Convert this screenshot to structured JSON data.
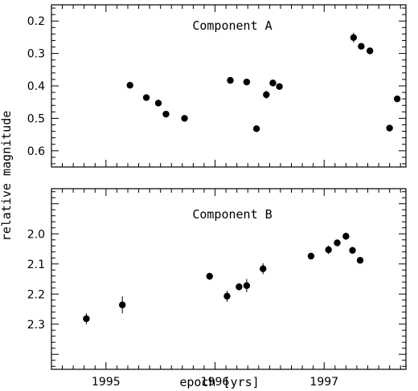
{
  "chart_data": {
    "type": "scatter",
    "xlabel": "epoch [yrs]",
    "ylabel": "relative magnitude",
    "xlim": [
      1994.5,
      1997.75
    ],
    "x_ticks": [
      1995,
      1996,
      1997
    ],
    "x_tick_labels": [
      "1995",
      "1996",
      "1997"
    ],
    "panels": [
      {
        "title": "Component A",
        "ylim": [
          0.15,
          0.65
        ],
        "y_inverted": true,
        "y_ticks": [
          0.2,
          0.3,
          0.4,
          0.5,
          0.6
        ],
        "y_tick_labels": [
          "0.2",
          "0.3",
          "0.4",
          "0.5",
          "0.6"
        ],
        "points": [
          {
            "x": 1995.22,
            "y": 0.398,
            "err": 0.008
          },
          {
            "x": 1995.37,
            "y": 0.436,
            "err": 0.008
          },
          {
            "x": 1995.48,
            "y": 0.453,
            "err": 0.008
          },
          {
            "x": 1995.55,
            "y": 0.487,
            "err": 0.008
          },
          {
            "x": 1995.72,
            "y": 0.5,
            "err": 0.008
          },
          {
            "x": 1996.14,
            "y": 0.383,
            "err": 0.008
          },
          {
            "x": 1996.29,
            "y": 0.388,
            "err": 0.008
          },
          {
            "x": 1996.38,
            "y": 0.532,
            "err": 0.008
          },
          {
            "x": 1996.47,
            "y": 0.427,
            "err": 0.012
          },
          {
            "x": 1996.53,
            "y": 0.391,
            "err": 0.008
          },
          {
            "x": 1996.59,
            "y": 0.402,
            "err": 0.008
          },
          {
            "x": 1997.27,
            "y": 0.251,
            "err": 0.015
          },
          {
            "x": 1997.34,
            "y": 0.278,
            "err": 0.008
          },
          {
            "x": 1997.42,
            "y": 0.292,
            "err": 0.008
          },
          {
            "x": 1997.6,
            "y": 0.53,
            "err": 0.008
          },
          {
            "x": 1997.67,
            "y": 0.44,
            "err": 0.008
          }
        ]
      },
      {
        "title": "Component B",
        "ylim": [
          1.85,
          2.45
        ],
        "y_inverted": true,
        "y_ticks": [
          2.0,
          2.1,
          2.2,
          2.3
        ],
        "y_tick_labels": [
          "2.0",
          "2.1",
          "2.2",
          "2.3"
        ],
        "points": [
          {
            "x": 1994.82,
            "y": 2.282,
            "err": 0.018
          },
          {
            "x": 1995.15,
            "y": 2.236,
            "err": 0.028
          },
          {
            "x": 1995.95,
            "y": 2.141,
            "err": 0.012
          },
          {
            "x": 1996.11,
            "y": 2.207,
            "err": 0.018
          },
          {
            "x": 1996.22,
            "y": 2.176,
            "err": 0.012
          },
          {
            "x": 1996.29,
            "y": 2.172,
            "err": 0.022
          },
          {
            "x": 1996.44,
            "y": 2.116,
            "err": 0.018
          },
          {
            "x": 1996.88,
            "y": 2.074,
            "err": 0.008
          },
          {
            "x": 1997.04,
            "y": 2.053,
            "err": 0.014
          },
          {
            "x": 1997.12,
            "y": 2.03,
            "err": 0.008
          },
          {
            "x": 1997.2,
            "y": 2.008,
            "err": 0.012
          },
          {
            "x": 1997.26,
            "y": 2.055,
            "err": 0.008
          },
          {
            "x": 1997.33,
            "y": 2.088,
            "err": 0.008
          }
        ]
      }
    ]
  }
}
